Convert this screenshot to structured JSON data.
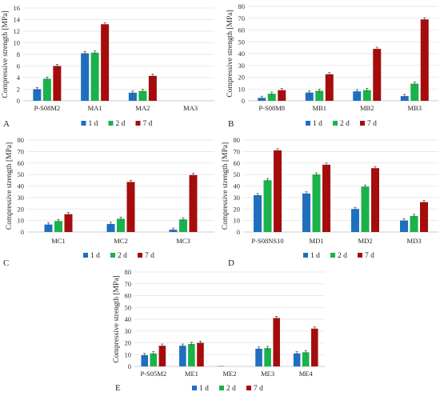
{
  "colors": {
    "1 d": "#1f6fbf",
    "2 d": "#19b24b",
    "7 d": "#a50d0d"
  },
  "chart_data": [
    {
      "panel": "A",
      "type": "bar",
      "ylabel": "Compressive strength [MPa]",
      "ylim": [
        0,
        16
      ],
      "yticks": [
        0,
        2,
        4,
        6,
        8,
        10,
        12,
        14,
        16
      ],
      "categories": [
        "P-S08M2",
        "MA1",
        "MA2",
        "MA3"
      ],
      "series": [
        {
          "name": "1 d",
          "values": [
            2.0,
            8.2,
            1.4,
            0
          ]
        },
        {
          "name": "2 d",
          "values": [
            3.8,
            8.3,
            1.7,
            0
          ]
        },
        {
          "name": "7 d",
          "values": [
            6.0,
            13.2,
            4.3,
            0
          ]
        }
      ],
      "legend": [
        "1 d",
        "2 d",
        "7 d"
      ]
    },
    {
      "panel": "B",
      "type": "bar",
      "ylabel": "Compressive strength [MPa]",
      "ylim": [
        0,
        80
      ],
      "yticks": [
        0,
        10,
        20,
        30,
        40,
        50,
        60,
        70,
        80
      ],
      "categories": [
        "P-S08M8",
        "MB1",
        "MB2",
        "MB3"
      ],
      "series": [
        {
          "name": "1 d",
          "values": [
            2.5,
            7.0,
            8.0,
            4.0
          ]
        },
        {
          "name": "2 d",
          "values": [
            6.0,
            8.5,
            9.0,
            14.5
          ]
        },
        {
          "name": "7 d",
          "values": [
            9.0,
            22.5,
            44.0,
            69.0
          ]
        }
      ],
      "legend": [
        "1 d",
        "2 d",
        "7 d"
      ]
    },
    {
      "panel": "C",
      "type": "bar",
      "ylabel": "Compressive strength [MPa]",
      "ylim": [
        0,
        80
      ],
      "yticks": [
        0,
        10,
        20,
        30,
        40,
        50,
        60,
        70,
        80
      ],
      "categories": [
        "MC1",
        "MC2",
        "MC3"
      ],
      "series": [
        {
          "name": "1 d",
          "values": [
            6.5,
            7.0,
            2.0
          ]
        },
        {
          "name": "2 d",
          "values": [
            9.5,
            11.5,
            11.0
          ]
        },
        {
          "name": "7 d",
          "values": [
            15.5,
            43.5,
            49.5
          ]
        }
      ],
      "legend": [
        "1 d",
        "2 d",
        "7 d"
      ]
    },
    {
      "panel": "D",
      "type": "bar",
      "ylabel": "Compressive strength [MPa]",
      "ylim": [
        0,
        80
      ],
      "yticks": [
        0,
        10,
        20,
        30,
        40,
        50,
        60,
        70,
        80
      ],
      "categories": [
        "P-S08NS10",
        "MD1",
        "MD2",
        "MD3"
      ],
      "series": [
        {
          "name": "1 d",
          "values": [
            32.0,
            33.5,
            20.0,
            10.0
          ]
        },
        {
          "name": "2 d",
          "values": [
            45.0,
            50.0,
            39.5,
            14.0
          ]
        },
        {
          "name": "7 d",
          "values": [
            71.0,
            58.5,
            55.5,
            26.0
          ]
        }
      ],
      "legend": [
        "1 d",
        "2 d",
        "7 d"
      ]
    },
    {
      "panel": "E",
      "type": "bar",
      "ylabel": "Compressive strength [MPa]",
      "ylim": [
        0,
        80
      ],
      "yticks": [
        0,
        10,
        20,
        30,
        40,
        50,
        60,
        70,
        80
      ],
      "categories": [
        "P-S05M2",
        "ME1",
        "ME2",
        "ME3",
        "ME4"
      ],
      "series": [
        {
          "name": "1 d",
          "values": [
            9.5,
            17.5,
            0.3,
            15.0,
            11.0
          ]
        },
        {
          "name": "2 d",
          "values": [
            11.0,
            19.0,
            0,
            15.5,
            12.0
          ]
        },
        {
          "name": "7 d",
          "values": [
            17.5,
            20.0,
            0,
            41.0,
            32.0
          ]
        }
      ],
      "legend": [
        "1 d",
        "2 d",
        "7 d"
      ]
    }
  ]
}
